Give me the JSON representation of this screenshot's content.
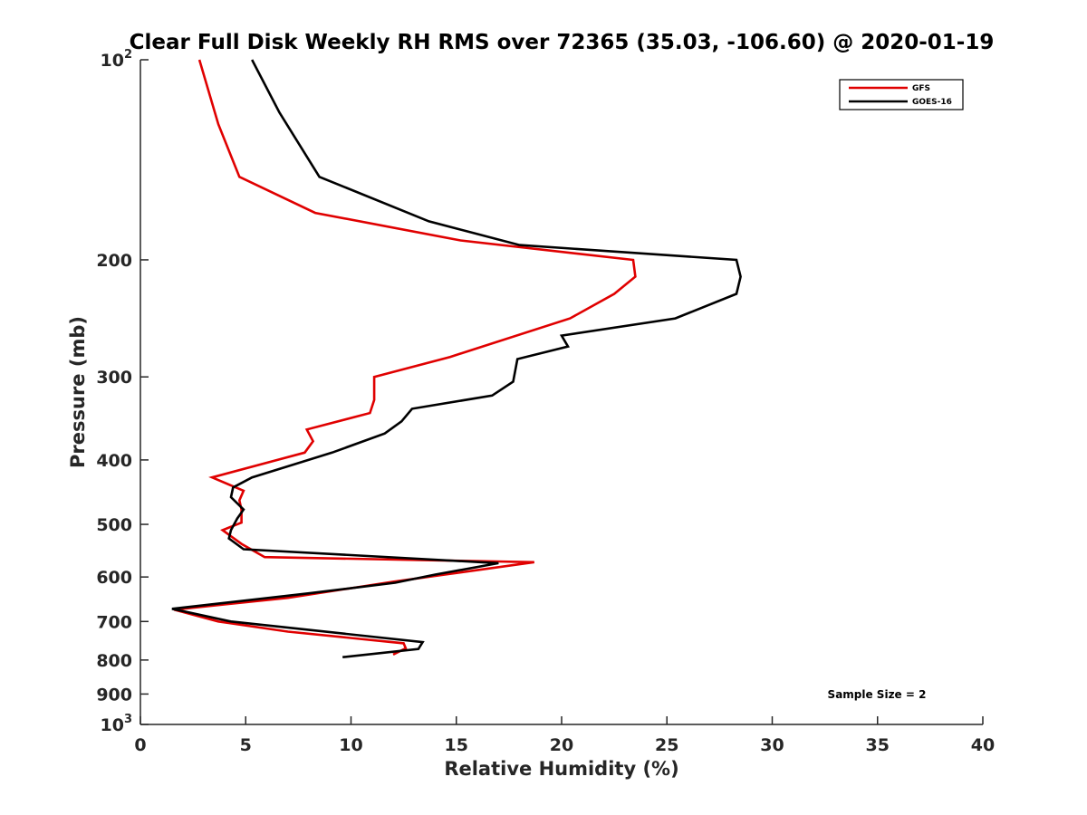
{
  "chart_data": {
    "type": "line",
    "title": "Clear Full Disk Weekly RH RMS over 72365 (35.03, -106.60) @ 2020-01-19",
    "xlabel": "Relative Humidity (%)",
    "ylabel": "Pressure (mb)",
    "xlim": [
      0,
      40
    ],
    "ylim": [
      100,
      1000
    ],
    "y_scale": "log",
    "y_reversed": true,
    "x_ticks": [
      0,
      5,
      10,
      15,
      20,
      25,
      30,
      35,
      40
    ],
    "y_ticks": [
      {
        "value": 100,
        "label": "10",
        "sup": "2"
      },
      {
        "value": 200,
        "label": "200",
        "sup": ""
      },
      {
        "value": 300,
        "label": "300",
        "sup": ""
      },
      {
        "value": 400,
        "label": "400",
        "sup": ""
      },
      {
        "value": 500,
        "label": "500",
        "sup": ""
      },
      {
        "value": 600,
        "label": "600",
        "sup": ""
      },
      {
        "value": 700,
        "label": "700",
        "sup": ""
      },
      {
        "value": 800,
        "label": "800",
        "sup": ""
      },
      {
        "value": 900,
        "label": "900",
        "sup": ""
      },
      {
        "value": 1000,
        "label": "10",
        "sup": "3"
      }
    ],
    "grid": false,
    "legend_position": "top-right",
    "annotation": "Sample Size = 2",
    "series": [
      {
        "name": "GFS",
        "color": "#e00000",
        "points": [
          [
            2.8,
            100
          ],
          [
            3.7,
            125
          ],
          [
            4.7,
            150
          ],
          [
            8.3,
            170
          ],
          [
            15.2,
            187
          ],
          [
            23.4,
            200
          ],
          [
            23.5,
            212
          ],
          [
            22.5,
            225
          ],
          [
            20.4,
            245
          ],
          [
            14.7,
            280
          ],
          [
            11.1,
            300
          ],
          [
            11.1,
            325
          ],
          [
            10.9,
            340
          ],
          [
            7.9,
            360
          ],
          [
            8.2,
            375
          ],
          [
            7.8,
            390
          ],
          [
            3.4,
            425
          ],
          [
            4.9,
            445
          ],
          [
            4.7,
            460
          ],
          [
            4.8,
            475
          ],
          [
            4.8,
            497
          ],
          [
            3.9,
            510
          ],
          [
            4.8,
            535
          ],
          [
            5.9,
            560
          ],
          [
            18.7,
            570
          ],
          [
            12.0,
            610
          ],
          [
            7.0,
            645
          ],
          [
            1.6,
            672
          ],
          [
            3.7,
            700
          ],
          [
            7.0,
            725
          ],
          [
            12.5,
            755
          ],
          [
            12.6,
            768
          ],
          [
            12.0,
            785
          ]
        ]
      },
      {
        "name": "GOES-16",
        "color": "#000000",
        "points": [
          [
            5.3,
            100
          ],
          [
            6.6,
            120
          ],
          [
            8.5,
            150
          ],
          [
            13.7,
            175
          ],
          [
            18.0,
            190
          ],
          [
            28.3,
            200
          ],
          [
            28.5,
            212
          ],
          [
            28.3,
            225
          ],
          [
            25.4,
            245
          ],
          [
            20.0,
            260
          ],
          [
            20.3,
            270
          ],
          [
            17.9,
            282
          ],
          [
            17.7,
            305
          ],
          [
            16.7,
            320
          ],
          [
            12.9,
            335
          ],
          [
            12.4,
            350
          ],
          [
            11.6,
            365
          ],
          [
            9.1,
            390
          ],
          [
            5.3,
            425
          ],
          [
            4.4,
            440
          ],
          [
            4.3,
            455
          ],
          [
            4.9,
            475
          ],
          [
            4.6,
            490
          ],
          [
            4.3,
            510
          ],
          [
            4.2,
            525
          ],
          [
            4.9,
            545
          ],
          [
            17.0,
            572
          ],
          [
            14.0,
            595
          ],
          [
            12.1,
            612
          ],
          [
            8.0,
            635
          ],
          [
            1.5,
            670
          ],
          [
            4.3,
            700
          ],
          [
            13.4,
            752
          ],
          [
            13.2,
            770
          ],
          [
            9.6,
            792
          ]
        ]
      }
    ]
  }
}
